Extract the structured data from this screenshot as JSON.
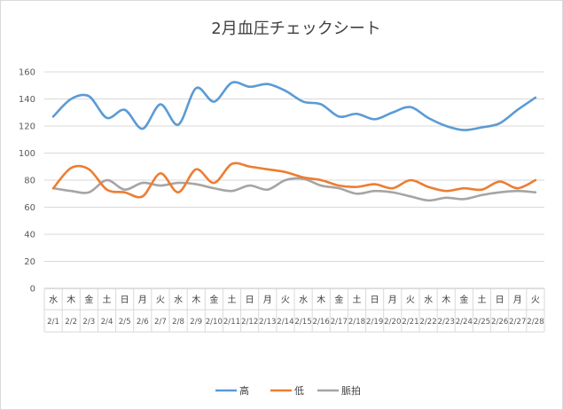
{
  "chart_data": {
    "type": "line",
    "title": "2月血圧チェックシート",
    "ylim": [
      0,
      160
    ],
    "yticks": [
      0,
      20,
      40,
      60,
      80,
      100,
      120,
      140,
      160
    ],
    "grid": true,
    "legend_position": "bottom",
    "categories_day": [
      "水",
      "木",
      "金",
      "土",
      "日",
      "月",
      "火",
      "水",
      "木",
      "金",
      "土",
      "日",
      "月",
      "火",
      "水",
      "木",
      "金",
      "土",
      "日",
      "月",
      "火",
      "水",
      "木",
      "金",
      "土",
      "日",
      "月",
      "火"
    ],
    "categories_date": [
      "2/1",
      "2/2",
      "2/3",
      "2/4",
      "2/5",
      "2/6",
      "2/7",
      "2/8",
      "2/9",
      "2/10",
      "2/11",
      "2/12",
      "2/13",
      "2/14",
      "2/15",
      "2/16",
      "2/17",
      "2/18",
      "2/19",
      "2/20",
      "2/21",
      "2/22",
      "2/23",
      "2/24",
      "2/25",
      "2/26",
      "2/27",
      "2/28"
    ],
    "series": [
      {
        "name": "高",
        "color": "#5b9bd5",
        "values": [
          127,
          140,
          142,
          126,
          132,
          118,
          136,
          121,
          148,
          138,
          152,
          149,
          151,
          146,
          138,
          136,
          127,
          129,
          125,
          130,
          134,
          126,
          120,
          117,
          119,
          122,
          132,
          141
        ]
      },
      {
        "name": "低",
        "color": "#ed7d31",
        "values": [
          74,
          89,
          88,
          73,
          71,
          68,
          85,
          71,
          88,
          78,
          92,
          90,
          88,
          86,
          82,
          80,
          76,
          75,
          77,
          74,
          80,
          75,
          72,
          74,
          73,
          79,
          74,
          80
        ]
      },
      {
        "name": "脈拍",
        "color": "#a5a5a5",
        "values": [
          74,
          72,
          71,
          80,
          73,
          78,
          76,
          78,
          77,
          74,
          72,
          76,
          73,
          80,
          81,
          76,
          74,
          70,
          72,
          71,
          68,
          65,
          67,
          66,
          69,
          71,
          72,
          71
        ]
      }
    ]
  }
}
